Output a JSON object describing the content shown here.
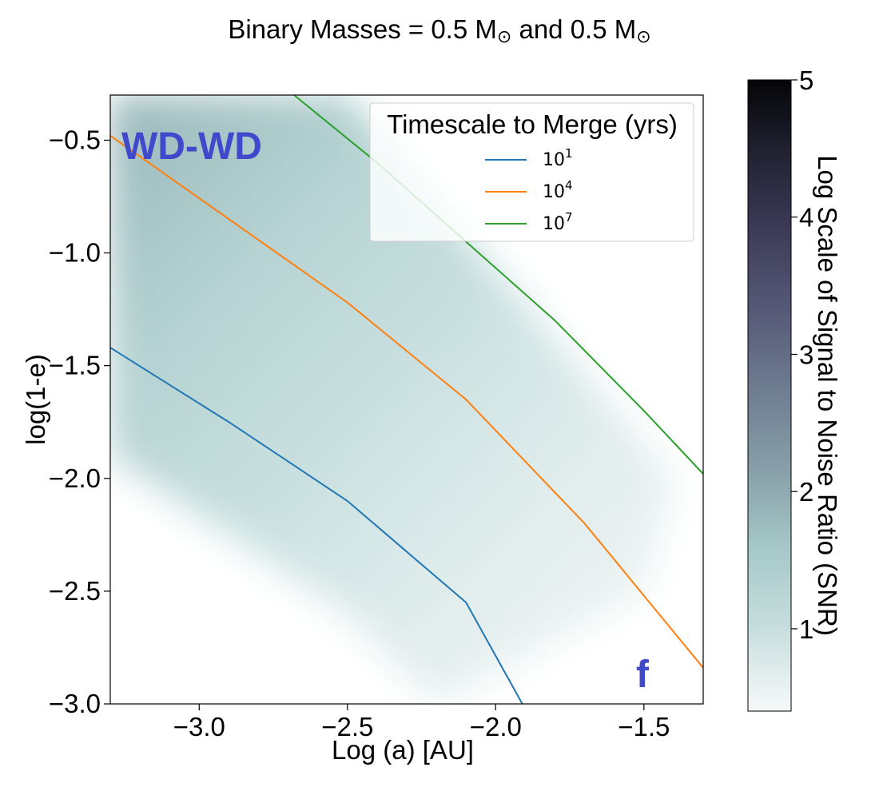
{
  "chart_data": {
    "type": "contour_heatmap",
    "title": "Binary Masses = 0.5 M",
    "title_parts": {
      "prefix": "Binary Masses = 0.5 M",
      "sun_symbol": "⊙",
      "middle": " and 0.5 M",
      "sun_symbol2": "⊙"
    },
    "xlabel": "Log (a) [AU]",
    "ylabel": "log(1-e)",
    "xlim": [
      -3.3,
      -1.3
    ],
    "ylim": [
      -3.0,
      -0.3
    ],
    "x_ticks": [
      -3.0,
      -2.5,
      -2.0,
      -1.5
    ],
    "x_tick_labels": [
      "−3.0",
      "−2.5",
      "−2.0",
      "−1.5"
    ],
    "y_ticks": [
      -0.5,
      -1.0,
      -1.5,
      -2.0,
      -2.5,
      -3.0
    ],
    "y_tick_labels": [
      "−0.5",
      "−1.0",
      "−1.5",
      "−2.0",
      "−2.5",
      "−3.0"
    ],
    "heatmap": {
      "description": "SNR band along diagonal, highest at upper-left",
      "band_upper_edge": [
        [
          -2.5,
          -0.3
        ],
        [
          -1.4,
          -2.0
        ],
        [
          -1.5,
          -2.5
        ]
      ],
      "band_lower_edge": [
        [
          -3.3,
          -1.9
        ],
        [
          -2.5,
          -2.6
        ],
        [
          -2.2,
          -3.0
        ]
      ],
      "max_value_upper_left": 2.2,
      "min_value": 0.4
    },
    "colorbar": {
      "label": "Log Scale of Signal to Noise Ratio (SNR)",
      "range": [
        0.4,
        5
      ],
      "ticks": [
        1,
        2,
        3,
        4,
        5
      ],
      "tick_labels": [
        "1",
        "2",
        "3",
        "4",
        "5"
      ],
      "colors": [
        "#f6f9f9",
        "#c8dede",
        "#a5c8c8",
        "#8aa3ab",
        "#707f92",
        "#575b78",
        "#3d3b58",
        "#202030",
        "#050508"
      ]
    },
    "legend": {
      "title": "Timescale to Merge (yrs)",
      "placement": "top-right",
      "entries": [
        {
          "label_base": "10",
          "label_exp": "1",
          "color": "#1f77b4"
        },
        {
          "label_base": "10",
          "label_exp": "4",
          "color": "#ff7f0e"
        },
        {
          "label_base": "10",
          "label_exp": "7",
          "color": "#2ca02c"
        }
      ]
    },
    "series": [
      {
        "name": "10^1 yrs",
        "color": "#1f77b4",
        "x": [
          -3.3,
          -2.9,
          -2.5,
          -2.1,
          -1.91
        ],
        "y": [
          -1.42,
          -1.75,
          -2.1,
          -2.55,
          -3.0
        ]
      },
      {
        "name": "10^4 yrs",
        "color": "#ff7f0e",
        "x": [
          -3.3,
          -2.9,
          -2.5,
          -2.1,
          -1.7,
          -1.3
        ],
        "y": [
          -0.48,
          -0.85,
          -1.22,
          -1.65,
          -2.2,
          -2.84
        ]
      },
      {
        "name": "10^7 yrs",
        "color": "#2ca02c",
        "x": [
          -2.68,
          -2.4,
          -2.1,
          -1.8,
          -1.5,
          -1.3
        ],
        "y": [
          -0.3,
          -0.6,
          -0.95,
          -1.3,
          -1.7,
          -1.98
        ]
      }
    ],
    "annotations": {
      "region_label": "WD-WD",
      "panel_label": "f",
      "annotation_color": "#4049cc"
    }
  }
}
